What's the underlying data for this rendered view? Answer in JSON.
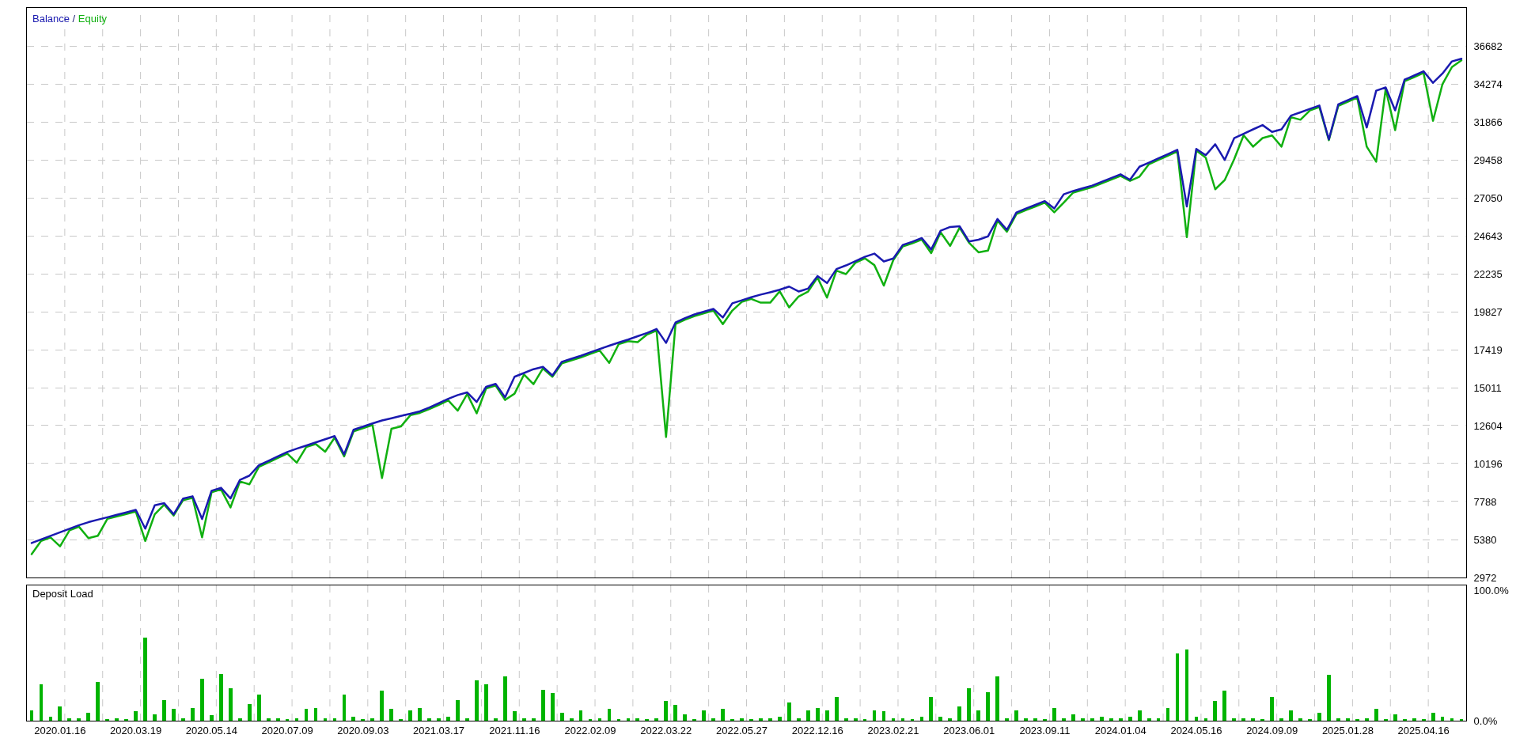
{
  "chart_data": [
    {
      "type": "line",
      "legend": "top left",
      "tick_labels": "y",
      "grid": true,
      "annotations": [
        "/"
      ],
      "categories": [
        null,
        null,
        null,
        "2020.01.16",
        null,
        null,
        null,
        null,
        null,
        null,
        null,
        "2020.03.19",
        null,
        null,
        null,
        null,
        null,
        null,
        null,
        "2020.05.14",
        null,
        null,
        null,
        null,
        null,
        null,
        null,
        "2020.07.09",
        null,
        null,
        null,
        null,
        null,
        null,
        null,
        "2020.09.03",
        null,
        null,
        null,
        null,
        null,
        null,
        null,
        "2021.03.17",
        null,
        null,
        null,
        null,
        null,
        null,
        null,
        "2021.11.16",
        null,
        null,
        null,
        null,
        null,
        null,
        null,
        "2022.02.09",
        null,
        null,
        null,
        null,
        null,
        null,
        null,
        "2022.03.22",
        null,
        null,
        null,
        null,
        null,
        null,
        null,
        "2022.05.27",
        null,
        null,
        null,
        null,
        null,
        null,
        null,
        "2022.12.16",
        null,
        null,
        null,
        null,
        null,
        null,
        null,
        "2023.02.21",
        null,
        null,
        null,
        null,
        null,
        null,
        null,
        "2023.06.01",
        null,
        null,
        null,
        null,
        null,
        null,
        null,
        "2023.09.11",
        null,
        null,
        null,
        null,
        null,
        null,
        null,
        "2024.01.04",
        null,
        null,
        null,
        null,
        null,
        null,
        null,
        "2024.05.16",
        null,
        null,
        null,
        null,
        null,
        null,
        null,
        "2024.09.09",
        null,
        null,
        null,
        null,
        null,
        null,
        null,
        "2025.01.28",
        null,
        null,
        null,
        null,
        null,
        null,
        null,
        "2025.04.16",
        null,
        null,
        null,
        null
      ],
      "series": [
        {
          "name": "Balance",
          "color": "#1a1ab0",
          "values": [
            5160,
            5390,
            5610,
            5840,
            6060,
            6290,
            6480,
            6640,
            6790,
            6950,
            7100,
            7260,
            6070,
            7550,
            7690,
            6980,
            7980,
            8120,
            6680,
            8470,
            8660,
            7980,
            9160,
            9430,
            10090,
            10370,
            10650,
            10930,
            11140,
            11340,
            11540,
            11740,
            11940,
            10780,
            12340,
            12540,
            12740,
            12930,
            13070,
            13220,
            13360,
            13510,
            13750,
            14020,
            14300,
            14540,
            14710,
            14100,
            15060,
            15250,
            14400,
            15700,
            15940,
            16180,
            16330,
            15780,
            16650,
            16840,
            17030,
            17250,
            17460,
            17670,
            17870,
            18060,
            18270,
            18480,
            18730,
            17850,
            19140,
            19420,
            19650,
            19830,
            20000,
            19460,
            20360,
            20550,
            20740,
            20910,
            21060,
            21220,
            21420,
            21110,
            21290,
            22090,
            21640,
            22530,
            22760,
            23030,
            23310,
            23510,
            23010,
            23200,
            24060,
            24260,
            24500,
            23770,
            24960,
            25200,
            25250,
            24280,
            24390,
            24600,
            25700,
            25020,
            26120,
            26370,
            26600,
            26840,
            26370,
            27270,
            27480,
            27650,
            27820,
            28060,
            28300,
            28540,
            28190,
            29020,
            29280,
            29550,
            29820,
            30090,
            26500,
            30150,
            29750,
            30440,
            29450,
            30830,
            31110,
            31390,
            31660,
            31230,
            31390,
            32260,
            32470,
            32690,
            32900,
            30750,
            32980,
            33240,
            33500,
            31510,
            33840,
            34050,
            32590,
            34540,
            34800,
            35070,
            34340,
            34930,
            35700,
            35870
          ]
        },
        {
          "name": "Equity",
          "color": "#10b010",
          "values": [
            4450,
            5290,
            5510,
            4950,
            5960,
            6190,
            5470,
            5620,
            6690,
            6850,
            7000,
            7160,
            5290,
            6980,
            7590,
            6900,
            7880,
            8020,
            5520,
            8370,
            8560,
            7410,
            9060,
            8880,
            9990,
            10270,
            10550,
            10830,
            10250,
            11240,
            11440,
            10950,
            11840,
            10650,
            12240,
            12440,
            12640,
            9280,
            12400,
            12550,
            13260,
            13410,
            13650,
            13920,
            14200,
            13550,
            14610,
            13380,
            14960,
            15150,
            14230,
            14630,
            15840,
            15230,
            16230,
            15700,
            16550,
            16740,
            16930,
            17150,
            17360,
            16580,
            17770,
            17960,
            17900,
            18380,
            18630,
            11880,
            19040,
            19320,
            19550,
            19730,
            19900,
            19040,
            19900,
            20450,
            20640,
            20400,
            20400,
            21120,
            20100,
            20790,
            21100,
            21990,
            20720,
            22430,
            22210,
            22930,
            23210,
            22780,
            21480,
            23100,
            23960,
            24160,
            24400,
            23540,
            24860,
            24000,
            25150,
            24200,
            23590,
            23700,
            25600,
            24900,
            26020,
            26270,
            26500,
            26740,
            26130,
            26740,
            27380,
            27550,
            27720,
            27960,
            28200,
            28440,
            28120,
            28390,
            29180,
            29450,
            29720,
            29990,
            24550,
            30050,
            29590,
            27590,
            28170,
            29500,
            31010,
            30290,
            30840,
            31000,
            30290,
            32160,
            32000,
            32590,
            32800,
            30700,
            32880,
            33140,
            33400,
            30290,
            29340,
            33950,
            31340,
            34440,
            34700,
            34970,
            31930,
            34260,
            35340,
            35770
          ]
        }
      ],
      "ylim": [
        2972,
        39090
      ],
      "yticks": [
        2972,
        5380,
        7788,
        10196,
        12604,
        15011,
        17419,
        19827,
        22235,
        24643,
        27050,
        29458,
        31866,
        34274,
        36682
      ]
    },
    {
      "type": "bar",
      "title": "Deposit Load",
      "grid": "x",
      "color": "#00b400",
      "categories": [
        null,
        null,
        null,
        "2020.01.16",
        null,
        null,
        null,
        null,
        null,
        null,
        null,
        "2020.03.19",
        null,
        null,
        null,
        null,
        null,
        null,
        null,
        "2020.05.14",
        null,
        null,
        null,
        null,
        null,
        null,
        null,
        "2020.07.09",
        null,
        null,
        null,
        null,
        null,
        null,
        null,
        "2020.09.03",
        null,
        null,
        null,
        null,
        null,
        null,
        null,
        "2021.03.17",
        null,
        null,
        null,
        null,
        null,
        null,
        null,
        "2021.11.16",
        null,
        null,
        null,
        null,
        null,
        null,
        null,
        "2022.02.09",
        null,
        null,
        null,
        null,
        null,
        null,
        null,
        "2022.03.22",
        null,
        null,
        null,
        null,
        null,
        null,
        null,
        "2022.05.27",
        null,
        null,
        null,
        null,
        null,
        null,
        null,
        "2022.12.16",
        null,
        null,
        null,
        null,
        null,
        null,
        null,
        "2023.02.21",
        null,
        null,
        null,
        null,
        null,
        null,
        null,
        "2023.06.01",
        null,
        null,
        null,
        null,
        null,
        null,
        null,
        "2023.09.11",
        null,
        null,
        null,
        null,
        null,
        null,
        null,
        "2024.01.04",
        null,
        null,
        null,
        null,
        null,
        null,
        null,
        "2024.05.16",
        null,
        null,
        null,
        null,
        null,
        null,
        null,
        "2024.09.09",
        null,
        null,
        null,
        null,
        null,
        null,
        null,
        "2025.01.28",
        null,
        null,
        null,
        null,
        null,
        null,
        null,
        "2025.04.16",
        null,
        null,
        null,
        null
      ],
      "values": [
        8,
        28,
        3,
        11,
        2,
        2,
        6,
        30,
        1,
        2,
        1,
        7,
        64,
        5,
        16,
        9,
        2,
        10,
        32,
        4,
        36,
        25,
        2,
        13,
        20,
        2,
        2,
        1,
        2,
        9,
        10,
        2,
        2,
        20,
        3,
        1,
        2,
        23,
        9,
        1,
        8,
        10,
        2,
        2,
        3,
        16,
        2,
        31,
        28,
        2,
        34,
        7,
        2,
        2,
        24,
        21,
        6,
        2,
        8,
        1,
        2,
        9,
        1,
        2,
        2,
        1,
        2,
        15,
        12,
        5,
        1,
        8,
        2,
        9,
        1,
        2,
        1,
        2,
        2,
        3,
        14,
        2,
        8,
        10,
        8,
        18,
        2,
        2,
        1,
        8,
        7,
        2,
        2,
        1,
        3,
        18,
        3,
        2,
        11,
        25,
        8,
        22,
        34,
        2,
        8,
        2,
        2,
        1,
        10,
        2,
        5,
        2,
        2,
        3,
        2,
        2,
        3,
        8,
        2,
        2,
        10,
        52,
        55,
        3,
        2,
        15,
        23,
        2,
        2,
        2,
        1,
        18,
        2,
        8,
        2,
        1,
        6,
        35,
        2,
        2,
        1,
        2,
        9,
        1,
        5,
        1,
        2,
        1,
        6,
        3,
        2,
        1
      ],
      "ylim": [
        0,
        104
      ],
      "yticks": [
        {
          "value": 0,
          "label": "0.0%"
        },
        {
          "value": 100,
          "label": "100.0%"
        }
      ]
    }
  ]
}
